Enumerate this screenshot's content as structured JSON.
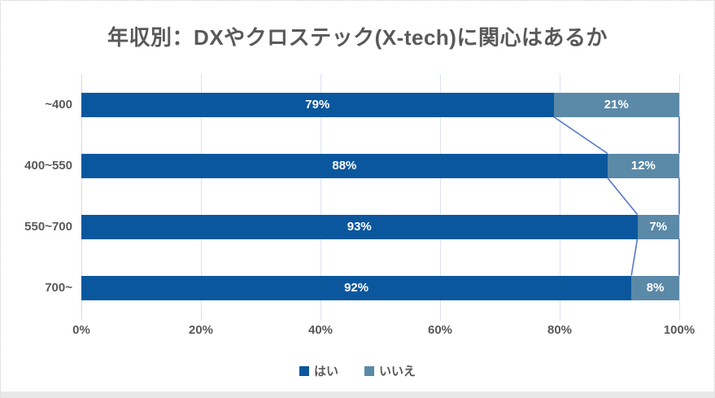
{
  "chart_data": {
    "type": "bar",
    "subtype": "horizontal-stacked-100",
    "title": "年収別：DXやクロステック(X-tech)に関心はあるか",
    "categories": [
      "~400",
      "400~550",
      "550~700",
      "700~"
    ],
    "series": [
      {
        "name": "はい",
        "color": "#0B579E",
        "values": [
          79,
          88,
          93,
          92
        ],
        "labels": [
          "79%",
          "88%",
          "93%",
          "92%"
        ]
      },
      {
        "name": "いいえ",
        "color": "#5B89A8",
        "values": [
          21,
          12,
          7,
          8
        ],
        "labels": [
          "21%",
          "12%",
          "7%",
          "8%"
        ]
      }
    ],
    "x_ticks": [
      "0%",
      "20%",
      "40%",
      "60%",
      "80%",
      "100%"
    ],
    "xlim": [
      0,
      100
    ],
    "gridlines": true,
    "series_lines": true,
    "legend_position": "bottom",
    "data_label_position": "center"
  },
  "colors": {
    "title_text": "#595959",
    "axis_text": "#595959",
    "data_label_text": "#ffffff",
    "gridline": "#D9E1F2",
    "axis_line": "#D9D9D9",
    "connector_line": "#5577C8",
    "bottom_strip": "#E8E8E8"
  }
}
